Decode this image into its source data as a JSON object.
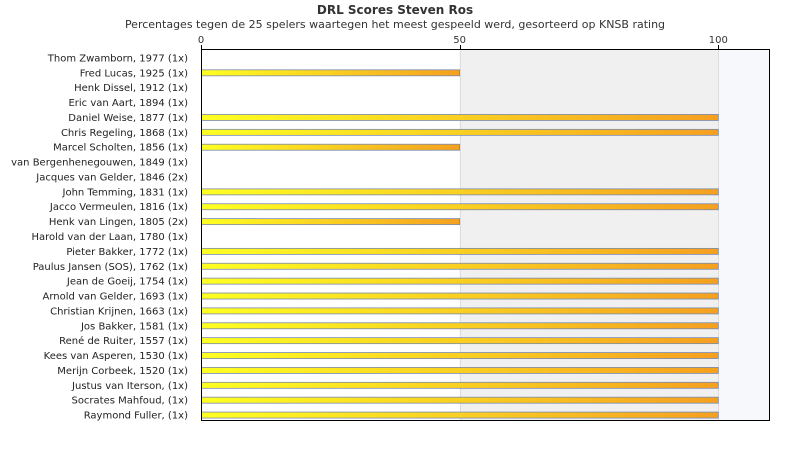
{
  "chart_data": {
    "type": "bar",
    "orientation": "horizontal",
    "title": "DRL Scores Steven Ros",
    "subtitle": "Percentages tegen de 25 spelers waartegen het meest gespeeld werd, gesorteerd op KNSB rating",
    "xlim": [
      0,
      110
    ],
    "xticks": [
      0,
      50,
      100
    ],
    "categories": [
      "Thom Zwamborn, 1977 (1x)",
      "Fred Lucas, 1925 (1x)",
      "Henk Dissel, 1912 (1x)",
      "Eric van Aart, 1894 (1x)",
      "Daniel Weise, 1877 (1x)",
      "Chris Regeling, 1868 (1x)",
      "Marcel Scholten, 1856 (1x)",
      "van Bergenhenegouwen, 1849 (1x)",
      "Jacques van Gelder, 1846 (2x)",
      "John Temming, 1831 (1x)",
      "Jacco Vermeulen, 1816 (1x)",
      "Henk van Lingen, 1805 (2x)",
      "Harold van der Laan, 1780 (1x)",
      "Pieter Bakker, 1772 (1x)",
      "Paulus Jansen (SOS), 1762 (1x)",
      "Jean de Goeij, 1754 (1x)",
      "Arnold van Gelder, 1693 (1x)",
      "Christian Krijnen, 1663 (1x)",
      "Jos Bakker, 1581 (1x)",
      "René de Ruiter, 1557 (1x)",
      "Kees van Asperen, 1530 (1x)",
      "Merijn Corbeek, 1520 (1x)",
      "Justus van Iterson,  (1x)",
      "Socrates Mahfoud,  (1x)",
      "Raymond Fuller,  (1x)"
    ],
    "values": [
      0,
      50,
      0,
      0,
      100,
      100,
      50,
      0,
      0,
      100,
      100,
      50,
      0,
      100,
      100,
      100,
      100,
      100,
      100,
      100,
      100,
      100,
      100,
      100,
      100
    ],
    "bar_gradient": [
      "#ffff22",
      "#f5a020"
    ],
    "bar_border": "#7a8ab0",
    "band_colors": [
      "#ffffff",
      "#f0f0f0",
      "#f7f8fb"
    ]
  }
}
